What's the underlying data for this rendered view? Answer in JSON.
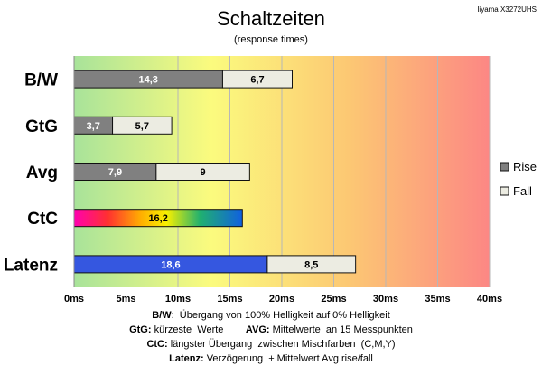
{
  "chart_data": {
    "type": "bar",
    "stacked": true,
    "orientation": "horizontal",
    "title": "Schaltzeiten",
    "subtitle": "(response times)",
    "model": "Iiyama X3272UHS",
    "categories": [
      "B/W",
      "GtG",
      "Avg",
      "CtC",
      "Latenz"
    ],
    "series": [
      {
        "name": "Rise",
        "color": "#808080",
        "values": [
          14.3,
          3.7,
          7.9,
          null,
          null
        ]
      },
      {
        "name": "Fall",
        "color": "#ecece2",
        "values": [
          6.7,
          5.7,
          9,
          null,
          8.5
        ]
      }
    ],
    "special_bars": {
      "CtC": {
        "value": 16.2,
        "fill": "rainbow-gradient",
        "label": "16,2"
      },
      "Latenz": {
        "value": 18.6,
        "fill": "#3557e0",
        "label": "18,6"
      }
    },
    "value_labels": {
      "Rise": [
        "14,3",
        "3,7",
        "7,9",
        "",
        ""
      ],
      "Fall": [
        "6,7",
        "5,7",
        "9",
        "",
        "8,5"
      ]
    },
    "xlim": [
      0,
      40
    ],
    "xticks": [
      "0ms",
      "5ms",
      "10ms",
      "15ms",
      "20ms",
      "25ms",
      "30ms",
      "35ms",
      "40ms"
    ],
    "tick_values": [
      0,
      5,
      10,
      15,
      20,
      25,
      30,
      35,
      40
    ],
    "legend_position": "right",
    "background": "green-yellow-red horizontal gradient",
    "grid": true
  },
  "footnotes": [
    {
      "parts": [
        {
          "b": "B/W"
        },
        {
          "t": ":  Übergang von 100% Helligkeit auf 0% Helligkeit"
        }
      ]
    },
    {
      "parts": [
        {
          "b": "GtG:"
        },
        {
          "t": " kürzeste  Werte        "
        },
        {
          "b": "AVG:"
        },
        {
          "t": " Mittelwerte  an 15 Messpunkten"
        }
      ]
    },
    {
      "parts": [
        {
          "b": "CtC:"
        },
        {
          "t": " längster Übergang  zwischen Mischfarben  (C,M,Y)"
        }
      ]
    },
    {
      "parts": [
        {
          "b": "Latenz:"
        },
        {
          "t": " Verzögerung  + Mittelwert Avg rise/fall"
        }
      ]
    }
  ],
  "colors": {
    "grad_green": "#a8e39a",
    "grad_yellow": "#fbfb7e",
    "grad_orange": "#fcc873",
    "grad_red": "#fc8784",
    "grid": "#b7b7b7",
    "bar_border": "#111111"
  }
}
